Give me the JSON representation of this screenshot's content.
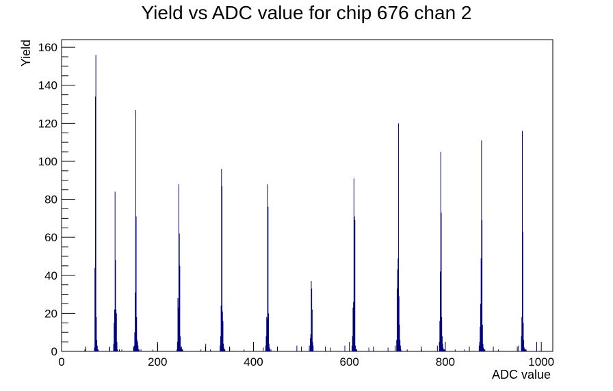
{
  "chart_data": {
    "type": "bar",
    "title": "Yield vs ADC value for chip 676 chan 2",
    "xlabel": "ADC value",
    "ylabel": "Yield",
    "xlim": [
      0,
      1024
    ],
    "ylim": [
      0,
      164
    ],
    "x_ticks": [
      0,
      200,
      400,
      600,
      800,
      1000
    ],
    "y_ticks": [
      0,
      20,
      40,
      60,
      80,
      100,
      120,
      140,
      160
    ],
    "grid": false,
    "series_color": "#000080",
    "bin_width": 1,
    "x": [
      48,
      68,
      69,
      70,
      71,
      72,
      73,
      74,
      75,
      76,
      100,
      108,
      109,
      110,
      111,
      112,
      113,
      114,
      115,
      116,
      120,
      125,
      150,
      151,
      152,
      153,
      154,
      155,
      156,
      157,
      158,
      159,
      160,
      161,
      165,
      190,
      200,
      240,
      241,
      242,
      243,
      244,
      245,
      246,
      247,
      248,
      249,
      250,
      251,
      252,
      290,
      300,
      310,
      330,
      331,
      332,
      333,
      334,
      335,
      336,
      337,
      338,
      339,
      340,
      350,
      380,
      420,
      425,
      426,
      427,
      428,
      429,
      430,
      431,
      432,
      433,
      434,
      436,
      490,
      516,
      518,
      519,
      520,
      521,
      522,
      523,
      524,
      560,
      590,
      605,
      606,
      607,
      608,
      609,
      610,
      611,
      612,
      613,
      614,
      615,
      640,
      680,
      695,
      698,
      699,
      700,
      701,
      702,
      703,
      704,
      705,
      706,
      707,
      720,
      750,
      783,
      787,
      788,
      789,
      790,
      791,
      792,
      793,
      794,
      795,
      796,
      797,
      798,
      820,
      840,
      870,
      871,
      872,
      873,
      874,
      875,
      876,
      877,
      878,
      879,
      880,
      881,
      882,
      910,
      952,
      958,
      959,
      960,
      961,
      962,
      963,
      964,
      965,
      966,
      967,
      968,
      990
    ],
    "values": [
      1,
      2,
      44,
      134,
      156,
      18,
      6,
      3,
      1,
      1,
      2,
      4,
      15,
      22,
      84,
      48,
      22,
      20,
      5,
      1,
      1,
      1,
      2,
      3,
      10,
      31,
      127,
      71,
      18,
      6,
      5,
      3,
      1,
      1,
      1,
      1,
      4,
      1,
      5,
      28,
      23,
      88,
      62,
      45,
      8,
      2,
      1,
      1,
      1,
      1,
      1,
      4,
      1,
      3,
      8,
      24,
      96,
      87,
      21,
      16,
      4,
      2,
      1,
      1,
      2,
      1,
      2,
      3,
      8,
      18,
      17,
      88,
      76,
      20,
      4,
      2,
      1,
      1,
      3,
      3,
      7,
      9,
      37,
      33,
      22,
      5,
      3,
      2,
      3,
      3,
      8,
      23,
      26,
      91,
      71,
      69,
      3,
      1,
      1,
      1,
      2,
      2,
      3,
      6,
      33,
      43,
      49,
      120,
      29,
      14,
      6,
      3,
      1,
      1,
      1,
      3,
      5,
      16,
      42,
      105,
      73,
      18,
      8,
      4,
      2,
      1,
      1,
      1,
      1,
      1,
      3,
      5,
      13,
      25,
      49,
      111,
      69,
      14,
      4,
      2,
      1,
      1,
      1,
      1,
      3,
      8,
      18,
      116,
      63,
      15,
      6,
      2,
      1,
      1,
      1,
      1,
      5
    ]
  }
}
